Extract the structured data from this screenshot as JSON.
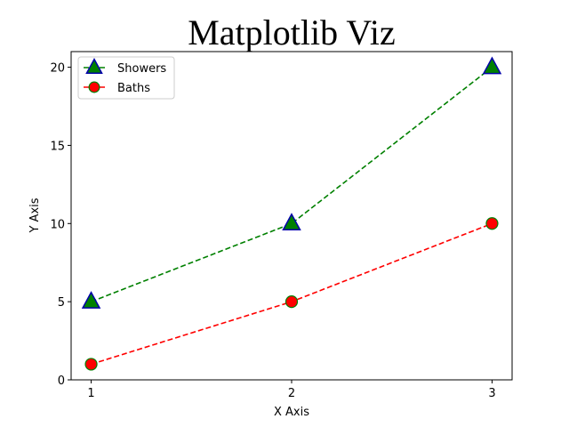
{
  "chart_data": {
    "type": "line",
    "title": "Matplotlib Viz",
    "xlabel": "X Axis",
    "ylabel": "Y Axis",
    "x": [
      1,
      2,
      3
    ],
    "xlim": [
      0.9,
      3.1
    ],
    "ylim": [
      0,
      21
    ],
    "xticks": [
      "1",
      "2",
      "3"
    ],
    "yticks": [
      "0",
      "5",
      "10",
      "15",
      "20"
    ],
    "grid": false,
    "legend": "top-left",
    "series": [
      {
        "name": "Showers",
        "values": [
          5,
          10,
          20
        ],
        "line_color": "#008000",
        "marker": "triangle",
        "marker_fill": "#008000",
        "marker_edge": "#0000aa",
        "line_style": "dashed"
      },
      {
        "name": "Baths",
        "values": [
          1,
          5,
          10
        ],
        "line_color": "#ff0000",
        "marker": "circle",
        "marker_fill": "#ff0000",
        "marker_edge": "#008000",
        "line_style": "dashed"
      }
    ]
  }
}
